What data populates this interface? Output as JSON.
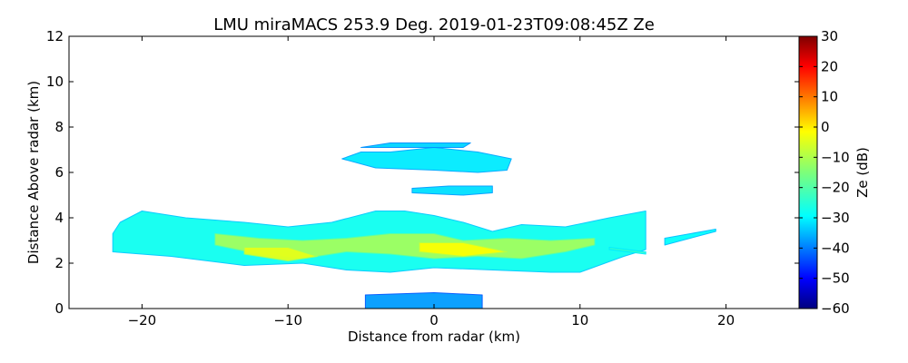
{
  "chart_data": {
    "type": "heatmap",
    "title": "LMU miraMACS 253.9 Deg. 2019-01-23T09:08:45Z  Ze",
    "xlabel": "Distance from radar (km)",
    "ylabel": "Distance Above radar  (km)",
    "xlim": [
      -25,
      25
    ],
    "ylim": [
      0,
      12
    ],
    "x_ticks": [
      -20,
      -10,
      0,
      10,
      20
    ],
    "x_tick_labels": [
      "−20",
      "−10",
      "0",
      "10",
      "20"
    ],
    "y_ticks": [
      0,
      2,
      4,
      6,
      8,
      10,
      12
    ],
    "y_tick_labels": [
      "0",
      "2",
      "4",
      "6",
      "8",
      "10",
      "12"
    ],
    "colorbar": {
      "label": "Ze (dB)",
      "colormap": "jet",
      "vmin": -60,
      "vmax": 30,
      "ticks": [
        30,
        20,
        10,
        0,
        -10,
        -20,
        -30,
        -40,
        -50,
        -60
      ],
      "tick_labels": [
        "30",
        "20",
        "10",
        "0",
        "−10",
        "−20",
        "−30",
        "−40",
        "−50",
        "−60"
      ]
    },
    "echo_regions": [
      {
        "name": "main-layer",
        "points": [
          [
            -22,
            2.5
          ],
          [
            -18,
            2.3
          ],
          [
            -13,
            1.9
          ],
          [
            -9,
            2.0
          ],
          [
            -6,
            1.7
          ],
          [
            -3,
            1.6
          ],
          [
            0,
            1.8
          ],
          [
            4,
            1.7
          ],
          [
            8,
            1.6
          ],
          [
            10,
            1.6
          ],
          [
            13,
            2.3
          ],
          [
            14.5,
            2.6
          ],
          [
            14.5,
            4.3
          ],
          [
            12,
            4.0
          ],
          [
            9,
            3.6
          ],
          [
            6,
            3.7
          ],
          [
            4,
            3.4
          ],
          [
            2,
            3.8
          ],
          [
            0,
            4.1
          ],
          [
            -2,
            4.3
          ],
          [
            -4,
            4.3
          ],
          [
            -7,
            3.8
          ],
          [
            -10,
            3.6
          ],
          [
            -13,
            3.8
          ],
          [
            -17,
            4.0
          ],
          [
            -20,
            4.3
          ],
          [
            -21.5,
            3.8
          ],
          [
            -22,
            3.3
          ]
        ],
        "ze_db": -25
      },
      {
        "name": "main-layer-core",
        "points": [
          [
            -15,
            2.8
          ],
          [
            -12,
            2.4
          ],
          [
            -9,
            2.2
          ],
          [
            -6,
            2.5
          ],
          [
            -3,
            2.4
          ],
          [
            0,
            2.2
          ],
          [
            3,
            2.3
          ],
          [
            6,
            2.2
          ],
          [
            9,
            2.5
          ],
          [
            11,
            2.8
          ],
          [
            11,
            3.1
          ],
          [
            8,
            3.0
          ],
          [
            5,
            3.1
          ],
          [
            2,
            3.0
          ],
          [
            0,
            3.3
          ],
          [
            -3,
            3.3
          ],
          [
            -6,
            3.1
          ],
          [
            -9,
            3.0
          ],
          [
            -12,
            3.1
          ],
          [
            -15,
            3.3
          ]
        ],
        "ze_db": -12
      },
      {
        "name": "main-layer-peak",
        "points": [
          [
            -13,
            2.4
          ],
          [
            -10,
            2.1
          ],
          [
            -8,
            2.3
          ],
          [
            -10,
            2.7
          ],
          [
            -13,
            2.7
          ]
        ],
        "ze_db": -6
      },
      {
        "name": "central-peak",
        "points": [
          [
            -1,
            2.5
          ],
          [
            2,
            2.3
          ],
          [
            5,
            2.5
          ],
          [
            2,
            2.9
          ],
          [
            -1,
            2.9
          ]
        ],
        "ze_db": -4
      },
      {
        "name": "upper-layer",
        "points": [
          [
            -6.3,
            6.6
          ],
          [
            -4,
            6.2
          ],
          [
            0,
            6.1
          ],
          [
            3,
            6.0
          ],
          [
            5,
            6.1
          ],
          [
            5.3,
            6.6
          ],
          [
            3,
            6.9
          ],
          [
            0,
            7.1
          ],
          [
            -3,
            6.9
          ],
          [
            -5,
            6.9
          ]
        ],
        "ze_db": -28
      },
      {
        "name": "upper-layer-top",
        "points": [
          [
            -5,
            7.1
          ],
          [
            -3,
            7.3
          ],
          [
            0,
            7.3
          ],
          [
            2.5,
            7.3
          ],
          [
            2,
            7.1
          ],
          [
            -3,
            7.1
          ]
        ],
        "ze_db": -30
      },
      {
        "name": "middle-wisp",
        "points": [
          [
            -1.5,
            5.1
          ],
          [
            2,
            5.0
          ],
          [
            4,
            5.1
          ],
          [
            4,
            5.4
          ],
          [
            1,
            5.4
          ],
          [
            -1.5,
            5.3
          ]
        ],
        "ze_db": -29
      },
      {
        "name": "surface-clutter",
        "points": [
          [
            -4.7,
            0.0
          ],
          [
            3.3,
            0.0
          ],
          [
            3.3,
            0.6
          ],
          [
            0,
            0.7
          ],
          [
            -4.7,
            0.6
          ]
        ],
        "ze_db": -35
      },
      {
        "name": "right-streak",
        "points": [
          [
            15.8,
            2.8
          ],
          [
            19.3,
            3.4
          ],
          [
            19.3,
            3.5
          ],
          [
            15.8,
            3.1
          ]
        ],
        "ze_db": -26
      },
      {
        "name": "far-right-wisp",
        "points": [
          [
            12,
            2.6
          ],
          [
            14.5,
            2.4
          ],
          [
            14.5,
            2.5
          ],
          [
            12,
            2.7
          ]
        ],
        "ze_db": -22
      }
    ]
  }
}
